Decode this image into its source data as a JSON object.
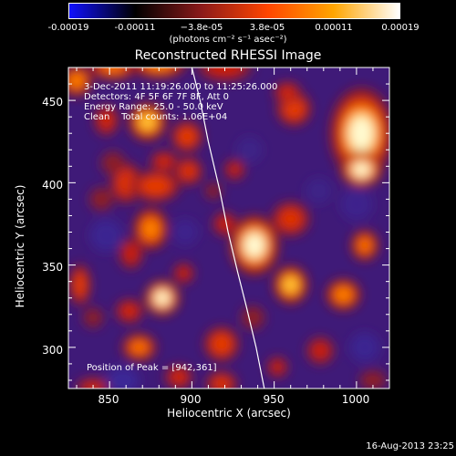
{
  "colorbar": {
    "ticks": [
      "-0.00019",
      "-0.00011",
      "−3.8e-05",
      "3.8e-05",
      "0.00011",
      "0.00019"
    ],
    "unit": "(photons cm⁻² s⁻¹ asec⁻²)",
    "colors": [
      "#1010ff",
      "#000000",
      "#8b1a1a",
      "#ff4500",
      "#ffa500",
      "#ffffff"
    ]
  },
  "chart_data": {
    "type": "heatmap",
    "title": "Reconstructed RHESSI Image",
    "xlabel": "Heliocentric X (arcsec)",
    "ylabel": "Heliocentric Y (arcsec)",
    "xlim": [
      825,
      1020
    ],
    "ylim": [
      275,
      470
    ],
    "xticks": [
      850,
      900,
      950,
      1000
    ],
    "yticks": [
      300,
      350,
      400,
      450
    ],
    "info_lines": [
      "3-Dec-2011 11:19:26.000 to 11:25:26.000",
      "Detectors: 4F 5F 6F 7F 8F, Att 0",
      "Energy Range: 25.0 - 50.0 keV",
      "Clean    Total counts: 1.06E+04"
    ],
    "peak_label": "Position of Peak = [942,361]",
    "peak": [
      942,
      361
    ],
    "limb": [
      [
        900,
        470
      ],
      [
        905,
        450
      ],
      [
        910,
        425
      ],
      [
        917,
        395
      ],
      [
        922,
        370
      ],
      [
        928,
        345
      ],
      [
        933,
        325
      ],
      [
        939,
        300
      ],
      [
        944,
        275
      ]
    ],
    "sources": [
      [
        830,
        462,
        9,
        9,
        0.75
      ],
      [
        852,
        470,
        14,
        7,
        0.7
      ],
      [
        880,
        472,
        16,
        8,
        0.75
      ],
      [
        920,
        470,
        16,
        8,
        0.5
      ],
      [
        873,
        437,
        11,
        11,
        0.85
      ],
      [
        848,
        438,
        7,
        9,
        0.55
      ],
      [
        897,
        428,
        9,
        9,
        0.65
      ],
      [
        962,
        445,
        10,
        10,
        0.65
      ],
      [
        958,
        455,
        8,
        6,
        0.55
      ],
      [
        1003,
        430,
        18,
        26,
        0.95
      ],
      [
        1003,
        408,
        12,
        10,
        1.0
      ],
      [
        860,
        400,
        9,
        12,
        0.6
      ],
      [
        878,
        398,
        14,
        9,
        0.65
      ],
      [
        898,
        407,
        8,
        8,
        0.6
      ],
      [
        883,
        413,
        8,
        6,
        0.55
      ],
      [
        852,
        412,
        7,
        7,
        0.45
      ],
      [
        845,
        390,
        7,
        7,
        0.45
      ],
      [
        938,
        362,
        14,
        17,
        1.0
      ],
      [
        960,
        378,
        11,
        10,
        0.6
      ],
      [
        920,
        375,
        7,
        7,
        0.5
      ],
      [
        913,
        395,
        5,
        5,
        0.45
      ],
      [
        926,
        408,
        6,
        6,
        0.5
      ],
      [
        875,
        372,
        10,
        12,
        0.75
      ],
      [
        863,
        357,
        7,
        9,
        0.5
      ],
      [
        1005,
        362,
        8,
        9,
        0.7
      ],
      [
        960,
        338,
        10,
        11,
        0.85
      ],
      [
        992,
        332,
        10,
        9,
        0.75
      ],
      [
        882,
        330,
        10,
        10,
        1.0
      ],
      [
        862,
        322,
        8,
        7,
        0.55
      ],
      [
        832,
        338,
        6,
        12,
        0.65
      ],
      [
        840,
        318,
        6,
        6,
        0.45
      ],
      [
        895,
        345,
        6,
        6,
        0.5
      ],
      [
        868,
        300,
        10,
        8,
        0.7
      ],
      [
        918,
        302,
        10,
        10,
        0.65
      ],
      [
        937,
        318,
        7,
        7,
        0.45
      ],
      [
        952,
        288,
        6,
        6,
        0.5
      ],
      [
        892,
        282,
        8,
        7,
        0.55
      ],
      [
        918,
        278,
        9,
        7,
        0.6
      ],
      [
        840,
        276,
        10,
        5,
        0.55
      ],
      [
        978,
        298,
        8,
        8,
        0.5
      ],
      [
        1010,
        280,
        8,
        6,
        0.45
      ],
      [
        848,
        368,
        10,
        10,
        -0.25
      ],
      [
        896,
        370,
        8,
        8,
        -0.2
      ],
      [
        858,
        280,
        10,
        8,
        -0.3
      ],
      [
        1000,
        387,
        10,
        10,
        -0.2
      ],
      [
        1005,
        300,
        9,
        9,
        -0.25
      ],
      [
        935,
        420,
        8,
        8,
        -0.15
      ],
      [
        977,
        395,
        8,
        8,
        -0.15
      ]
    ]
  },
  "footer": "16-Aug-2013 23:25"
}
